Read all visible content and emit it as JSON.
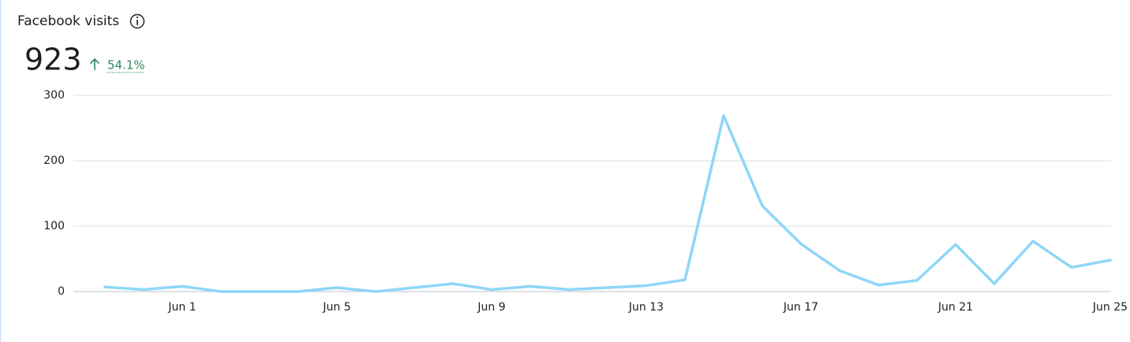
{
  "header": {
    "title": "Facebook visits",
    "total": 923,
    "change": "54.1%"
  },
  "chart_data": {
    "type": "line",
    "categories": [
      null,
      null,
      "Jun 1",
      null,
      null,
      null,
      "Jun 5",
      null,
      null,
      null,
      "Jun 9",
      null,
      null,
      null,
      "Jun 13",
      null,
      null,
      null,
      "Jun 17",
      null,
      null,
      null,
      "Jun 21",
      null,
      null,
      null,
      "Jun 25"
    ],
    "values": [
      7,
      3,
      8,
      0,
      0,
      0,
      6,
      0,
      6,
      12,
      3,
      8,
      3,
      6,
      9,
      18,
      269,
      131,
      73,
      32,
      10,
      17,
      72,
      12,
      77,
      37,
      48
    ],
    "color": "#8ed6f8",
    "ylim": [
      0,
      300
    ],
    "yticks": [
      0,
      100,
      200,
      300
    ],
    "grid": true
  }
}
